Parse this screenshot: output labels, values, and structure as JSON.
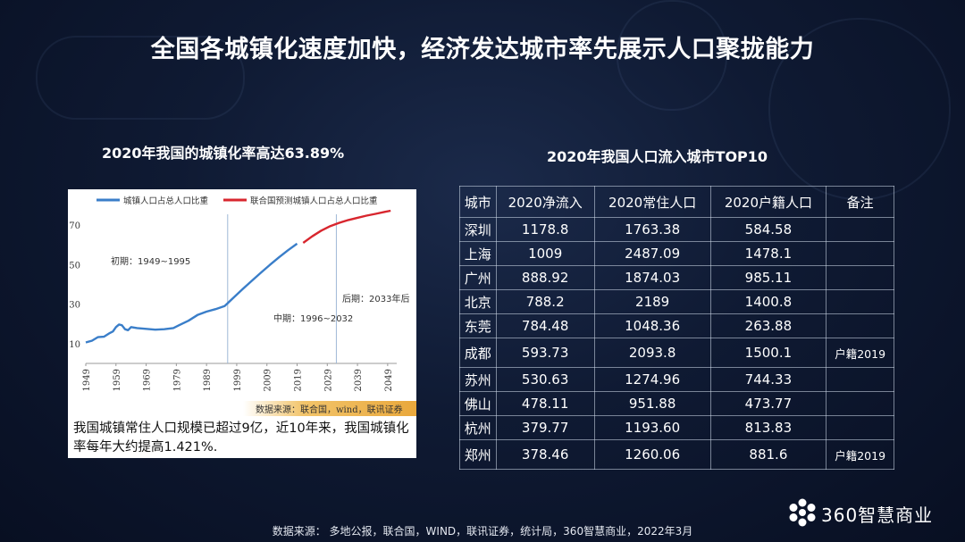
{
  "title": "全国各城镇化速度加快，经济发达城市率先展示人口聚拢能力",
  "left_subtitle": "2020年我国的城镇化率高达63.89%",
  "right_subtitle": "2020年我国人口流入城市TOP10",
  "chart_data": {
    "type": "line",
    "legend": [
      "城镇人口占总人口比重",
      "联合国预测城镇人口占总人口比重"
    ],
    "legend_colors": [
      "#3a7ec9",
      "#d8262e"
    ],
    "x_ticks": [
      "1949",
      "1959",
      "1969",
      "1979",
      "1989",
      "1999",
      "2009",
      "2019",
      "2029",
      "2039",
      "2049"
    ],
    "y_ticks": [
      "10",
      "30",
      "50",
      "70"
    ],
    "ylim": [
      0,
      80
    ],
    "xlim": [
      1949,
      2052
    ],
    "series": [
      {
        "name": "城镇人口占总人口比重",
        "color": "#3a7ec9",
        "x": [
          1949,
          1951,
          1953,
          1955,
          1957,
          1958,
          1959,
          1960,
          1961,
          1962,
          1963,
          1964,
          1966,
          1969,
          1972,
          1975,
          1978,
          1980,
          1983,
          1986,
          1989,
          1992,
          1995,
          1998,
          2001,
          2004,
          2007,
          2010,
          2013,
          2016,
          2019
        ],
        "y": [
          10.6,
          11.5,
          13.3,
          13.5,
          15.4,
          16.2,
          18.4,
          19.7,
          19.3,
          17.3,
          16.8,
          18.4,
          17.9,
          17.5,
          17.1,
          17.3,
          17.9,
          19.4,
          21.6,
          24.5,
          26.2,
          27.5,
          29.0,
          33.4,
          37.7,
          41.8,
          45.9,
          49.9,
          53.7,
          57.3,
          60.6
        ]
      },
      {
        "name": "联合国预测城镇人口占总人口比重",
        "color": "#d8262e",
        "x": [
          2021,
          2024,
          2027,
          2030,
          2033,
          2036,
          2039,
          2042,
          2045,
          2048,
          2050
        ],
        "y": [
          61.0,
          64.3,
          67.2,
          69.5,
          71.2,
          72.6,
          73.7,
          74.8,
          75.7,
          76.7,
          77.3
        ]
      }
    ],
    "annotations": [
      "初期：1949~1995",
      "中期：1996~2032",
      "后期：2033年后"
    ],
    "divider_years": [
      1996,
      2032
    ]
  },
  "chart_source": "数据来源：联合国，wind，联讯证券",
  "chart_note": "我国城镇常住人口规模已超过9亿，近10年来，我国城镇化率每年大约提高1.421%.",
  "table": {
    "headers": [
      "城市",
      "2020净流入",
      "2020常住人口",
      "2020户籍人口",
      "备注"
    ],
    "rows": [
      [
        "深圳",
        "1178.8",
        "1763.38",
        "584.58",
        ""
      ],
      [
        "上海",
        "1009",
        "2487.09",
        "1478.1",
        ""
      ],
      [
        "广州",
        "888.92",
        "1874.03",
        "985.11",
        ""
      ],
      [
        "北京",
        "788.2",
        "2189",
        "1400.8",
        ""
      ],
      [
        "东莞",
        "784.48",
        "1048.36",
        "263.88",
        ""
      ],
      [
        "成都",
        "593.73",
        "2093.8",
        "1500.1",
        "户籍2019"
      ],
      [
        "苏州",
        "530.63",
        "1274.96",
        "744.33",
        ""
      ],
      [
        "佛山",
        "478.11",
        "951.88",
        "473.77",
        ""
      ],
      [
        "杭州",
        "379.77",
        "1193.60",
        "813.83",
        ""
      ],
      [
        "郑州",
        "378.46",
        "1260.06",
        "881.6",
        "户籍2019"
      ]
    ]
  },
  "footer": "数据来源：  多地公报，联合国，WIND，联讯证券，统计局，360智慧商业，2022年3月",
  "logo_text": "360智慧商业"
}
